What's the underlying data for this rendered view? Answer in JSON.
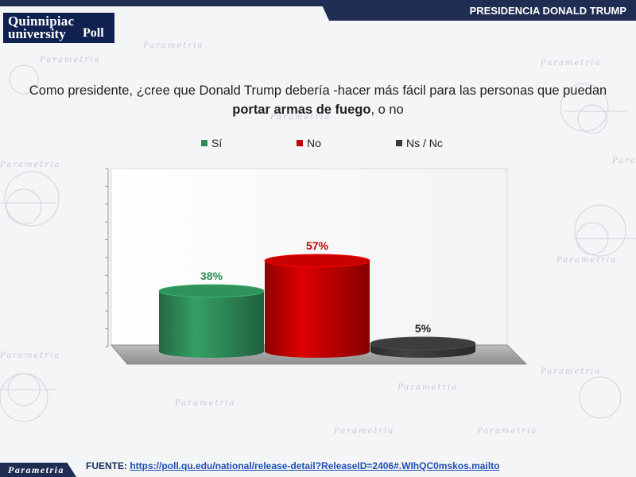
{
  "header": {
    "title": "PRESIDENCIA DONALD TRUMP"
  },
  "logo": {
    "line1": "Quinnipiac",
    "line2": "university",
    "line3": "Poll"
  },
  "question": {
    "part1": "Como presidente, ¿cree que Donald Trump debería -hacer más fácil para las personas que puedan",
    "bold": "portar armas de fuego",
    "part2": ", o no"
  },
  "chart_data": {
    "type": "bar",
    "categories": [
      "Sí",
      "No",
      "Ns / Nc"
    ],
    "values": [
      38,
      57,
      5
    ],
    "value_labels": [
      "38%",
      "57%",
      "5%"
    ],
    "colors": [
      "#2e8b57",
      "#c00000",
      "#3a3a3a"
    ],
    "label_colors": [
      "#2e8b57",
      "#c00000",
      "#222222"
    ],
    "legend": [
      "Sí",
      "No",
      "Ns / Nc"
    ],
    "legend_placement": "top",
    "ylim": [
      0,
      100
    ],
    "grid": false
  },
  "footer": {
    "source_label": "FUENTE: ",
    "source_url": "https://poll.qu.edu/national/release-detail?ReleaseID=2406#.WIhQC0mskos.mailto",
    "brand": "Parametria"
  },
  "background_words": [
    "Parametria"
  ]
}
